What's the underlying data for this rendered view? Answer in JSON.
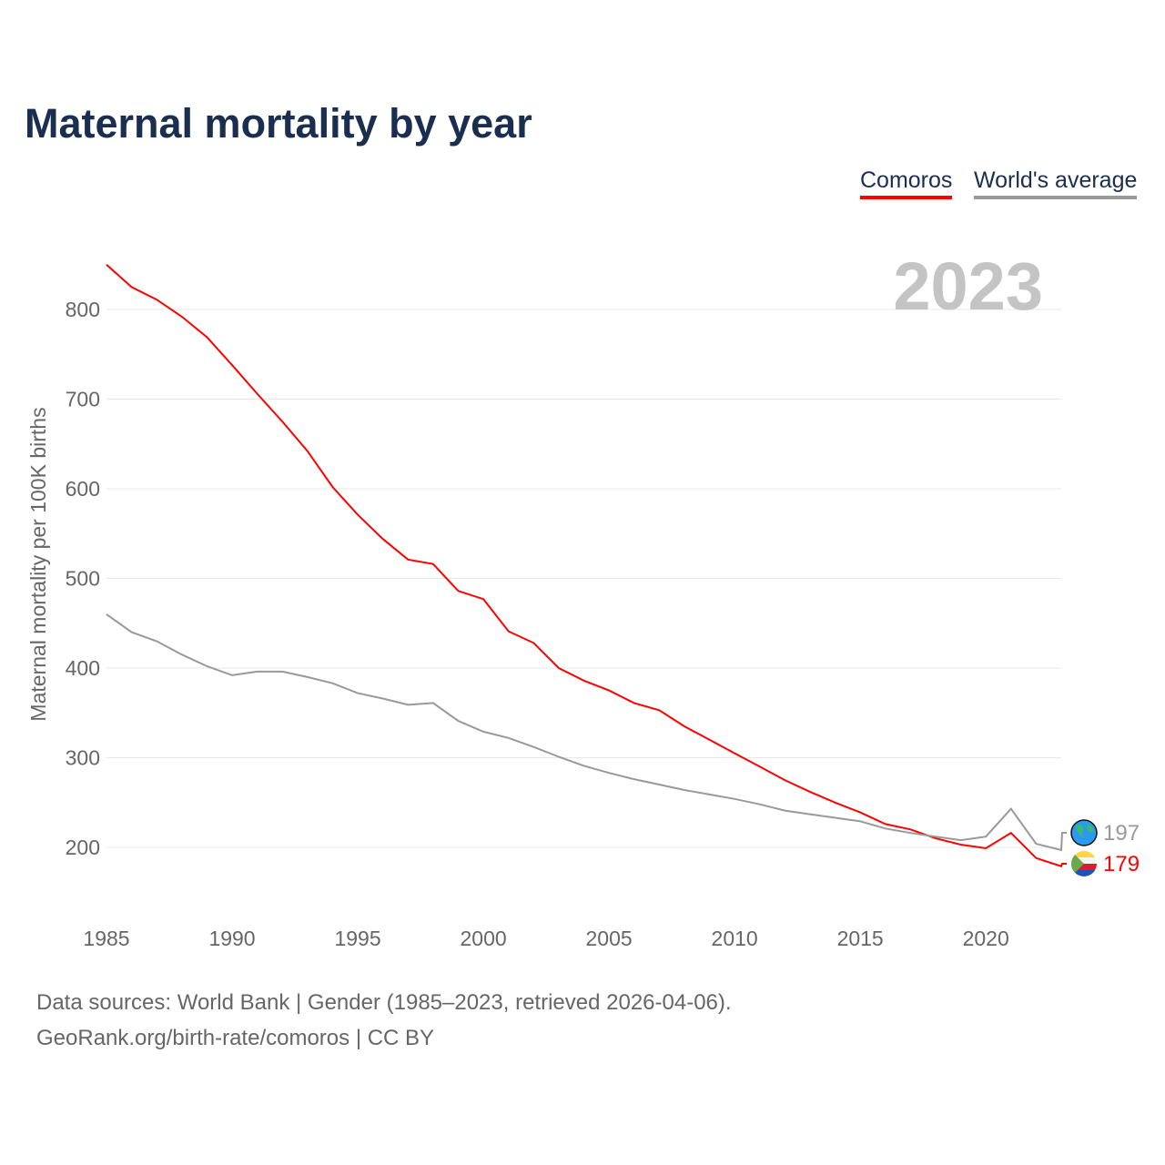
{
  "chart_data": {
    "type": "line",
    "title": "Maternal mortality by year",
    "ylabel": "Maternal mortality per 100K births",
    "xlabel": "",
    "year_watermark": "2023",
    "x": [
      1985,
      1986,
      1987,
      1988,
      1989,
      1990,
      1991,
      1992,
      1993,
      1994,
      1995,
      1996,
      1997,
      1998,
      1999,
      2000,
      2001,
      2002,
      2003,
      2004,
      2005,
      2006,
      2007,
      2008,
      2009,
      2010,
      2011,
      2012,
      2013,
      2014,
      2015,
      2016,
      2017,
      2018,
      2019,
      2020,
      2021,
      2022,
      2023
    ],
    "xticks": [
      "1985",
      "1990",
      "1995",
      "2000",
      "2005",
      "2010",
      "2015",
      "2020"
    ],
    "yticks": [
      "200",
      "300",
      "400",
      "500",
      "600",
      "700",
      "800"
    ],
    "ylim": [
      145,
      870
    ],
    "xlim": [
      1985,
      2023
    ],
    "grid": true,
    "legend_position": "top-right",
    "series": [
      {
        "name": "Comoros",
        "color": "#ff0000",
        "end_label": "179",
        "icon": "comoros-flag-icon",
        "values": [
          850,
          825,
          811,
          792,
          769,
          738,
          706,
          675,
          642,
          602,
          571,
          544,
          521,
          516,
          486,
          477,
          441,
          428,
          400,
          386,
          375,
          361,
          353,
          335,
          320,
          305,
          290,
          275,
          262,
          250,
          239,
          226,
          220,
          210,
          203,
          199,
          216,
          188,
          179
        ]
      },
      {
        "name": "World's average",
        "color": "#999999",
        "end_label": "197",
        "icon": "globe-icon",
        "values": [
          460,
          440,
          430,
          415,
          402,
          392,
          396,
          396,
          390,
          383,
          372,
          366,
          359,
          361,
          341,
          329,
          322,
          312,
          301,
          291,
          283,
          276,
          270,
          264,
          259,
          254,
          248,
          241,
          237,
          233,
          229,
          221,
          216,
          212,
          208,
          212,
          243,
          204,
          197
        ]
      }
    ]
  },
  "footer": {
    "line1": "Data sources: World Bank | Gender (1985–2023, retrieved 2026-04-06).",
    "line2": "GeoRank.org/birth-rate/comoros | CC BY"
  }
}
